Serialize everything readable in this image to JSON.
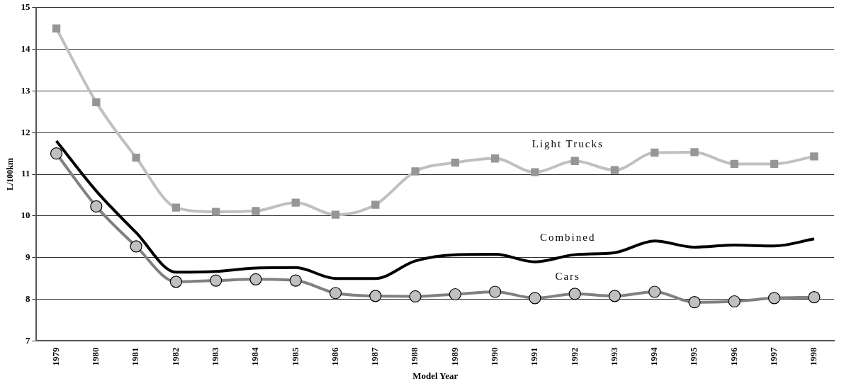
{
  "chart_data": {
    "type": "line",
    "xlabel": "Model Year",
    "ylabel": "L/100km",
    "categories": [
      "1979",
      "1980",
      "1981",
      "1982",
      "1983",
      "1984",
      "1985",
      "1986",
      "1987",
      "1988",
      "1989",
      "1990",
      "1991",
      "1992",
      "1993",
      "1994",
      "1995",
      "1996",
      "1997",
      "1998"
    ],
    "ylim": [
      7,
      15
    ],
    "yticks": [
      7,
      8,
      9,
      10,
      11,
      12,
      13,
      14,
      15
    ],
    "grid": "y",
    "legend": false,
    "series": [
      {
        "name": "Light Trucks",
        "color": "#c0c0c0",
        "marker": "square",
        "values": [
          14.5,
          12.73,
          11.4,
          10.2,
          10.1,
          10.12,
          10.32,
          10.03,
          10.27,
          11.07,
          11.28,
          11.38,
          11.05,
          11.32,
          11.1,
          11.52,
          11.53,
          11.25,
          11.25,
          11.43
        ]
      },
      {
        "name": "Combined",
        "color": "#000000",
        "marker": "none",
        "values": [
          11.8,
          10.6,
          9.6,
          8.65,
          8.67,
          8.75,
          8.76,
          8.5,
          8.5,
          8.92,
          9.07,
          9.08,
          8.9,
          9.07,
          9.12,
          9.4,
          9.25,
          9.3,
          9.28,
          9.45
        ]
      },
      {
        "name": "Cars",
        "color": "#808080",
        "marker": "circle",
        "values": [
          11.5,
          10.23,
          9.27,
          8.42,
          8.45,
          8.48,
          8.45,
          8.15,
          8.08,
          8.07,
          8.12,
          8.18,
          8.03,
          8.13,
          8.08,
          8.18,
          7.93,
          7.95,
          8.03,
          8.05
        ]
      }
    ]
  }
}
